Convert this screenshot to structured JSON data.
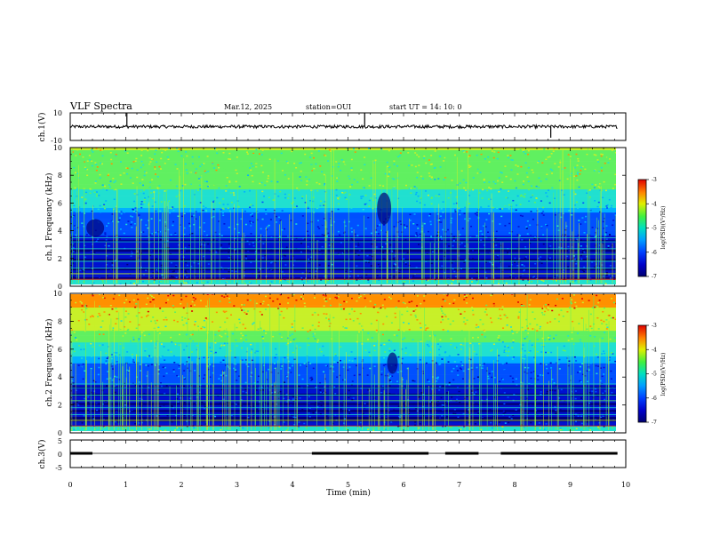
{
  "header": {
    "title": "VLF Spectra",
    "date": "Mar.12, 2025",
    "station": "station=OUI",
    "start": "start  UT =   14: 10: 0"
  },
  "colors": {
    "spectrogram_scale": [
      "#00007a",
      "#0010d0",
      "#0050ff",
      "#00b0ff",
      "#20e0d0",
      "#60f060",
      "#c8f028",
      "#ff9000",
      "#e00000"
    ]
  },
  "chart_data": [
    {
      "type": "line",
      "name": "ch1-waveform",
      "ylabel": "ch.1(V)",
      "ylim": [
        -10,
        10
      ],
      "yticks": [
        "10",
        "-10"
      ],
      "baseline": 0,
      "spikes": [
        {
          "t": 1.02,
          "v": 10
        },
        {
          "t": 5.3,
          "v": 10
        },
        {
          "t": 8.65,
          "v": -8
        }
      ],
      "xlim": [
        0,
        9.85
      ]
    },
    {
      "type": "heatmap",
      "name": "ch1-spectrogram",
      "ylabel": "ch.1 Frequency  (kHz)",
      "ylim": [
        0,
        10
      ],
      "yticks": [
        "0",
        "2",
        "4",
        "6",
        "8",
        "10"
      ],
      "xlim": [
        0,
        9.85
      ],
      "colorbar": {
        "title": "log(PSD)(V²/Hz)",
        "range": [
          -7,
          -3
        ],
        "ticks": [
          "-3",
          "-4",
          "-5",
          "-6",
          "-7"
        ]
      }
    },
    {
      "type": "heatmap",
      "name": "ch2-spectrogram",
      "ylabel": "ch.2 Frequency  (kHz)",
      "ylim": [
        0,
        10
      ],
      "yticks": [
        "0",
        "2",
        "4",
        "6",
        "8",
        "10"
      ],
      "xlim": [
        0,
        9.85
      ],
      "colorbar": {
        "title": "log(PSD)(V²/Hz)",
        "range": [
          -7,
          -3
        ],
        "ticks": [
          "-3",
          "-4",
          "-5",
          "-6",
          "-7"
        ]
      }
    },
    {
      "type": "line",
      "name": "ch3-signal",
      "ylabel": "ch.3(V)",
      "ylim": [
        -5,
        5
      ],
      "yticks": [
        "5",
        "0",
        "-5"
      ],
      "segments": [
        {
          "t0": 0.0,
          "t1": 0.4,
          "v": 0
        },
        {
          "t0": 4.35,
          "t1": 6.45,
          "v": 0
        },
        {
          "t0": 6.75,
          "t1": 7.35,
          "v": 0
        },
        {
          "t0": 7.75,
          "t1": 9.85,
          "v": 0
        }
      ],
      "xlim": [
        0,
        9.85
      ]
    }
  ],
  "xaxis": {
    "label": "Time  (min)",
    "range": [
      0,
      10
    ],
    "ticks": [
      "0",
      "1",
      "2",
      "3",
      "4",
      "5",
      "6",
      "7",
      "8",
      "9",
      "10"
    ]
  }
}
